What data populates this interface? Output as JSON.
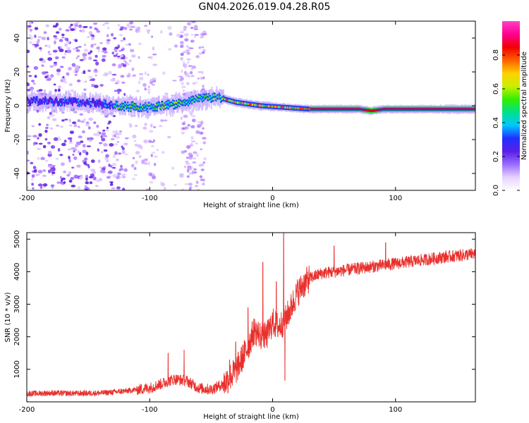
{
  "title": "GN04.2026.019.04.28.R05",
  "chart_data": [
    {
      "type": "heatmap",
      "name": "spectrogram",
      "title": "GN04.2026.019.04.28.R05",
      "xlabel": "Height of straight line (km)",
      "ylabel": "Frequency (Hz)",
      "xlim": [
        -200,
        165
      ],
      "ylim": [
        -50,
        50
      ],
      "xticks": [
        -200,
        -100,
        0,
        100
      ],
      "yticks": [
        -40,
        -20,
        0,
        20,
        40
      ],
      "xtick_labels": [
        "-200",
        "-100",
        "0",
        "100"
      ],
      "ytick_labels": [
        "-40",
        "-20",
        "0",
        "20",
        "40"
      ],
      "ridge": {
        "x": [
          -200,
          -150,
          -130,
          -100,
          -80,
          -60,
          -45,
          -30,
          -10,
          10,
          30,
          50,
          70,
          80,
          90,
          110,
          130,
          165
        ],
        "y": [
          3,
          2,
          0,
          -1,
          1,
          4,
          5,
          2,
          0,
          -1,
          -2,
          -2,
          -2,
          -3,
          -2,
          -2,
          -2,
          -2
        ]
      },
      "colorbar": {
        "label": "Normalized spectral amplitude",
        "range": [
          0,
          1
        ],
        "ticks": [
          0.0,
          0.2,
          0.4,
          0.6,
          0.8
        ],
        "tick_labels": [
          "0.0",
          "0.2",
          "0.4",
          "0.6",
          "0.8"
        ],
        "colors": [
          "#ffffff",
          "#e6d2ff",
          "#9a6cff",
          "#5a1ee6",
          "#2030ff",
          "#00c8ff",
          "#00e08a",
          "#33ee00",
          "#c8f000",
          "#ffd000",
          "#ff6000",
          "#f00000",
          "#ff0090",
          "#ff40c8"
        ]
      }
    },
    {
      "type": "line",
      "name": "snr",
      "xlabel": "Height of straight line (km)",
      "ylabel": "SNR (10 * v/v)",
      "xlim": [
        -200,
        165
      ],
      "ylim": [
        0,
        5200
      ],
      "xticks": [
        -200,
        -100,
        0,
        100
      ],
      "yticks": [
        1000,
        2000,
        3000,
        4000,
        5000
      ],
      "xtick_labels": [
        "-200",
        "-100",
        "0",
        "100"
      ],
      "ytick_labels": [
        "1000",
        "2000",
        "3000",
        "4000",
        "5000"
      ],
      "color": "#e8302c",
      "x": [
        -200,
        -180,
        -160,
        -140,
        -120,
        -100,
        -90,
        -80,
        -70,
        -60,
        -50,
        -40,
        -30,
        -20,
        -15,
        -10,
        -5,
        0,
        5,
        10,
        15,
        20,
        25,
        30,
        40,
        60,
        80,
        100,
        120,
        140,
        165
      ],
      "y": [
        250,
        270,
        260,
        270,
        330,
        430,
        560,
        700,
        650,
        420,
        380,
        550,
        950,
        1700,
        2200,
        2050,
        2000,
        2450,
        2300,
        2500,
        2900,
        3350,
        3600,
        3800,
        3950,
        4050,
        4150,
        4250,
        4350,
        4450,
        4550
      ],
      "spikes": [
        {
          "x": -85,
          "y": 1500
        },
        {
          "x": -72,
          "y": 1600
        },
        {
          "x": -35,
          "y": 1300
        },
        {
          "x": -30,
          "y": 1850
        },
        {
          "x": -20,
          "y": 2900
        },
        {
          "x": -8,
          "y": 4300
        },
        {
          "x": 3,
          "y": 3700
        },
        {
          "x": 9,
          "y": 5200
        },
        {
          "x": 10,
          "y": 650
        },
        {
          "x": 50,
          "y": 4800
        },
        {
          "x": 92,
          "y": 4900
        }
      ]
    }
  ]
}
